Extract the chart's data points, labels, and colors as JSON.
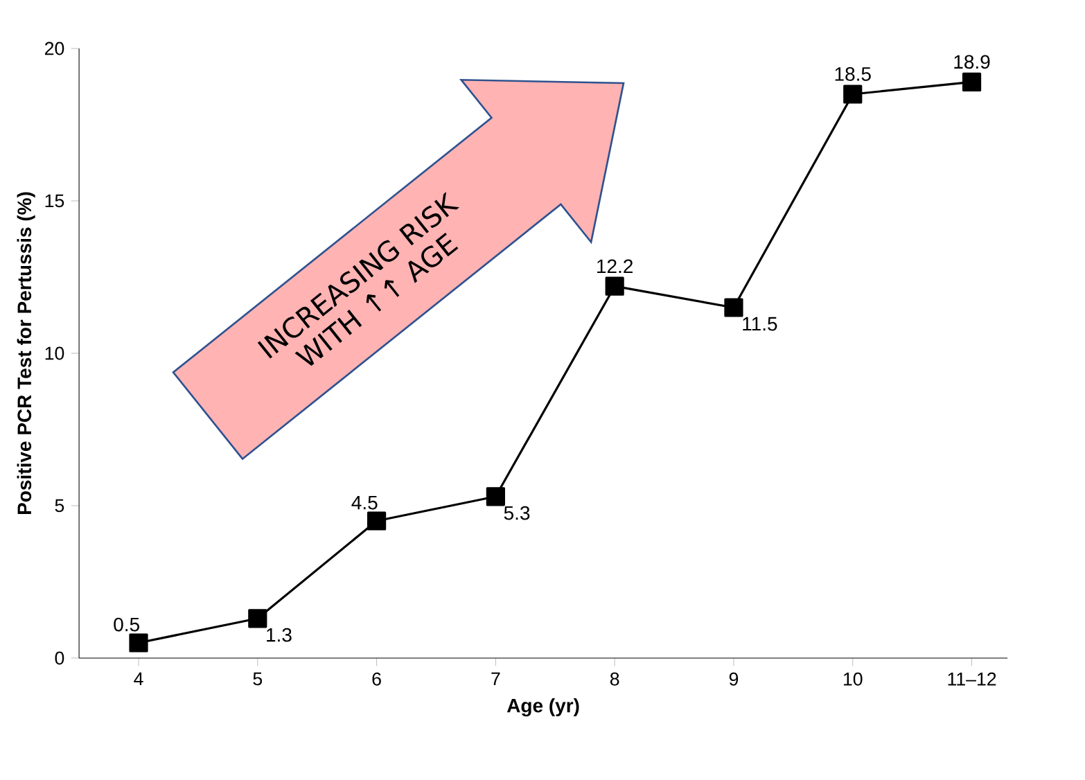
{
  "chart_data": {
    "type": "line",
    "xlabel": "Age (yr)",
    "ylabel": "Positive PCR Test for Pertussis (%)",
    "categories": [
      "4",
      "5",
      "6",
      "7",
      "8",
      "9",
      "10",
      "11–12"
    ],
    "values": [
      0.5,
      1.3,
      4.5,
      5.3,
      12.2,
      11.5,
      18.5,
      18.9
    ],
    "color": "#000000",
    "marker": "square",
    "line_style": "solid",
    "data_labels": true,
    "ylim": [
      0,
      20
    ],
    "yticks": [
      0,
      5,
      10,
      15,
      20
    ],
    "annotations": [
      "INCREASING RISK WITH ↑↑ AGE"
    ]
  }
}
